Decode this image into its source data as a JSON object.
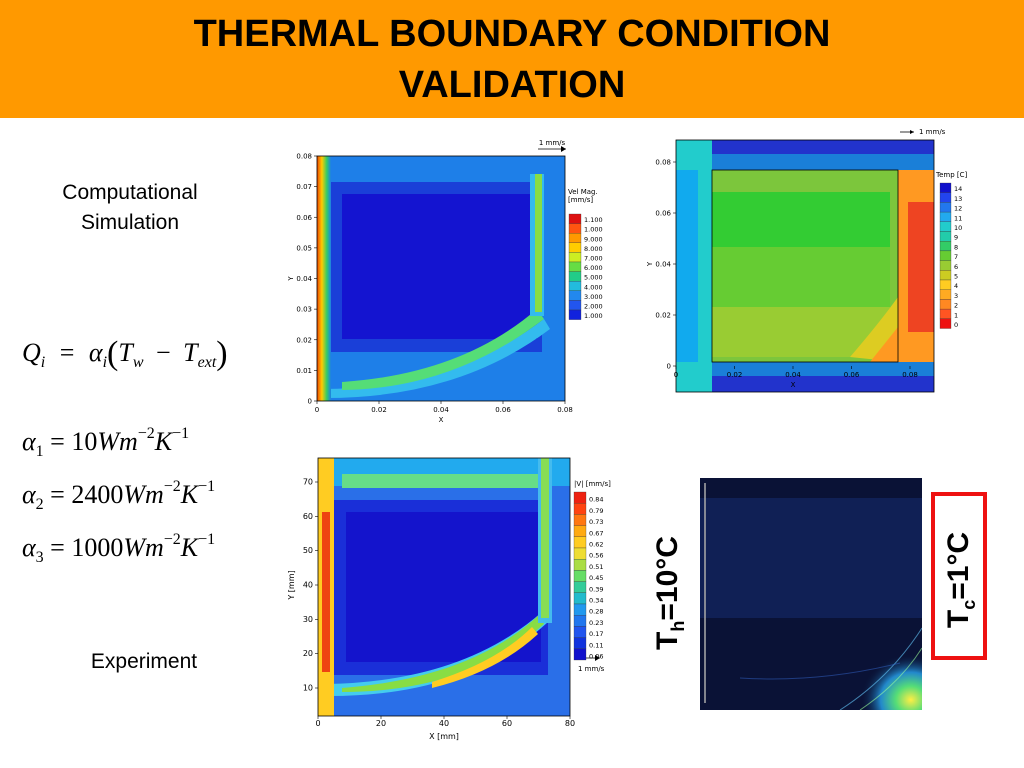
{
  "title": {
    "line1": "THERMAL BOUNDARY CONDITION",
    "line2": "VALIDATION"
  },
  "labels": {
    "computational_l1": "Computational",
    "computational_l2": "Simulation",
    "experiment": "Experiment"
  },
  "equations": {
    "heat_flux": {
      "Q": "Q",
      "Q_sub": "i",
      "eq": "=",
      "alpha": "α",
      "alpha_sub": "i",
      "T": "T",
      "w": "w",
      "minus": "−",
      "ext": "ext"
    },
    "alpha1": {
      "sym": "α",
      "sub": "1",
      "value": "10",
      "unit": "Wm",
      "exp1": "−2",
      "K": "K",
      "exp2": "−1"
    },
    "alpha2": {
      "sym": "α",
      "sub": "2",
      "value": "2400",
      "unit": "Wm",
      "exp1": "−2",
      "K": "K",
      "exp2": "−1"
    },
    "alpha3": {
      "sym": "α",
      "sub": "3",
      "value": "1000",
      "unit": "Wm",
      "exp1": "−2",
      "K": "K",
      "exp2": "−1"
    }
  },
  "plots": {
    "sim_velocity": {
      "xlabel": "X",
      "ylabel": "Y",
      "yticks": [
        "0.08",
        "0.07",
        "0.06",
        "0.05",
        "0.04",
        "0.03",
        "0.02",
        "0.01",
        "0"
      ],
      "xticks": [
        "0",
        "0.02",
        "0.04",
        "0.06",
        "0.08"
      ],
      "arrow_label": "1 mm/s",
      "legend_title_1": "Vel Mag.",
      "legend_title_2": "[mm/s]",
      "legend": [
        "1.100",
        "1.000",
        "9.000",
        "8.000",
        "7.000",
        "6.000",
        "5.000",
        "4.000",
        "3.000",
        "2.000",
        "1.000"
      ]
    },
    "sim_temperature": {
      "xlabel": "X",
      "ylabel": "Y",
      "yticks": [
        "0.08",
        "0.06",
        "0.04",
        "0.02",
        "0"
      ],
      "xticks": [
        "0",
        "0.02",
        "0.04",
        "0.06",
        "0.08"
      ],
      "arrow_label": "1 mm/s",
      "legend_title": "Temp [C]",
      "legend": [
        "14",
        "13",
        "12",
        "11",
        "10",
        "9",
        "8",
        "7",
        "6",
        "5",
        "4",
        "3",
        "2",
        "1",
        "0"
      ]
    },
    "exp_velocity": {
      "xlabel": "X [mm]",
      "ylabel": "Y [mm]",
      "yticks": [
        "70",
        "60",
        "50",
        "40",
        "30",
        "20",
        "10"
      ],
      "xticks": [
        "0",
        "20",
        "40",
        "60",
        "80"
      ],
      "arrow_label": "1 mm/s",
      "legend_title": "|V| [mm/s]",
      "legend": [
        "0.84",
        "0.79",
        "0.73",
        "0.67",
        "0.62",
        "0.56",
        "0.51",
        "0.45",
        "0.39",
        "0.34",
        "0.28",
        "0.23",
        "0.17",
        "0.11",
        "0.06"
      ]
    }
  },
  "hot_label": {
    "T": "T",
    "sub": "h",
    "value": "=10°C"
  },
  "cold_label": {
    "T": "T",
    "sub": "c",
    "value": "=1°C"
  },
  "colors": {
    "header": "#ff9900",
    "cold_box": "#ee1111"
  }
}
